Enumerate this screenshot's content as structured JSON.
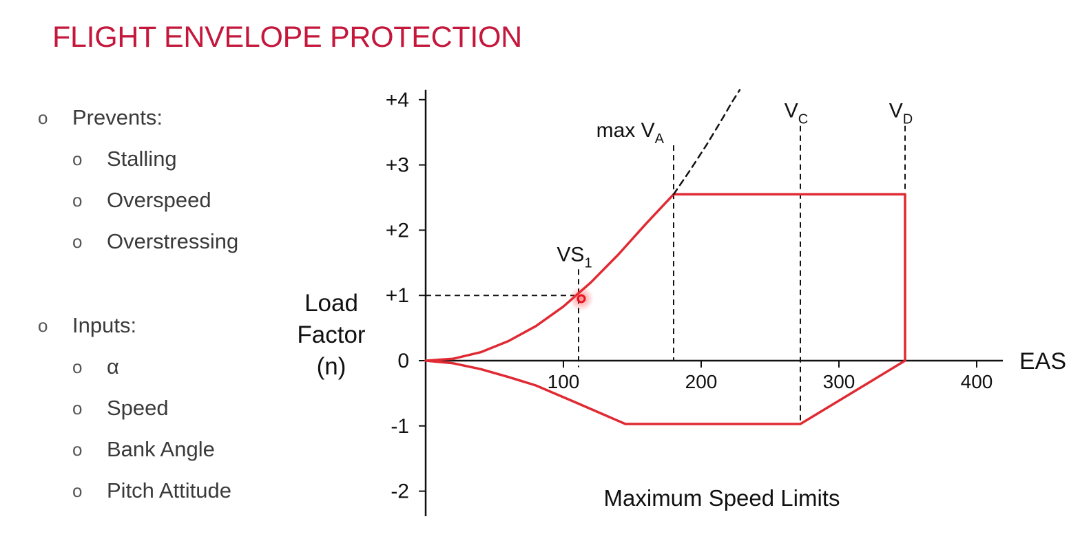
{
  "slide": {
    "title": "FLIGHT ENVELOPE PROTECTION"
  },
  "bullets": {
    "marker": "o",
    "prevents": {
      "heading": "Prevents:",
      "items": [
        "Stalling",
        "Overspeed",
        "Overstressing"
      ]
    },
    "inputs": {
      "heading": "Inputs:",
      "items": [
        "α",
        "Speed",
        "Bank Angle",
        "Pitch Attitude"
      ]
    }
  },
  "colors": {
    "title": "#c4173b",
    "envelope": "#e02a33",
    "axis": "#111111",
    "marker": "#e8141e"
  },
  "chart_data": {
    "type": "line",
    "title": "",
    "xlabel": "EAS",
    "ylabel_lines": [
      "Load",
      "Factor",
      "(n)"
    ],
    "caption": "Maximum Speed Limits",
    "xlim": [
      0,
      400
    ],
    "ylim": [
      -2,
      4
    ],
    "x_ticks": [
      {
        "value": 100,
        "label": "100"
      },
      {
        "value": 200,
        "label": "200"
      },
      {
        "value": 300,
        "label": "300"
      },
      {
        "value": 400,
        "label": "400"
      }
    ],
    "y_ticks": [
      {
        "value": 4,
        "label": "+4"
      },
      {
        "value": 3,
        "label": "+3"
      },
      {
        "value": 2,
        "label": "+2"
      },
      {
        "value": 1,
        "label": "+1"
      },
      {
        "value": 0,
        "label": "0"
      },
      {
        "value": -1,
        "label": "-1"
      },
      {
        "value": -2,
        "label": "-2"
      }
    ],
    "series": [
      {
        "style": "solid",
        "color": "#e02a33",
        "points": [
          [
            0,
            0
          ],
          [
            20,
            0.03
          ],
          [
            40,
            0.13
          ],
          [
            60,
            0.3
          ],
          [
            80,
            0.53
          ],
          [
            100,
            0.83
          ],
          [
            120,
            1.2
          ],
          [
            140,
            1.63
          ],
          [
            160,
            2.1
          ],
          [
            180,
            2.55
          ],
          [
            348,
            2.55
          ],
          [
            348,
            0
          ],
          [
            272,
            -0.97
          ],
          [
            145,
            -0.97
          ],
          [
            110,
            -0.65
          ],
          [
            80,
            -0.38
          ],
          [
            60,
            -0.25
          ],
          [
            40,
            -0.13
          ],
          [
            20,
            -0.04
          ],
          [
            0,
            0
          ]
        ]
      },
      {
        "style": "dashed",
        "color": "#111111",
        "points": [
          [
            180,
            2.55
          ],
          [
            192,
            2.92
          ],
          [
            204,
            3.31
          ],
          [
            216,
            3.73
          ],
          [
            222,
            3.95
          ],
          [
            228,
            4.15
          ]
        ]
      }
    ],
    "vertical_markers": [
      {
        "label": "max V",
        "sub": "A",
        "x": 180,
        "y_top": 3.3,
        "y_bottom": 0
      },
      {
        "label": "V",
        "sub": "C",
        "x": 272,
        "y_top": 3.6,
        "y_bottom": -0.97
      },
      {
        "label": "V",
        "sub": "D",
        "x": 348,
        "y_top": 3.6,
        "y_bottom": 2.55
      },
      {
        "label": "VS",
        "sub": "1",
        "x": 111,
        "y_top": 1.4,
        "y_bottom": -0.1
      }
    ],
    "reference_line": {
      "y": 1,
      "x_from": 0,
      "x_to": 111
    },
    "highlight_point": {
      "x": 113,
      "y": 0.95
    }
  }
}
